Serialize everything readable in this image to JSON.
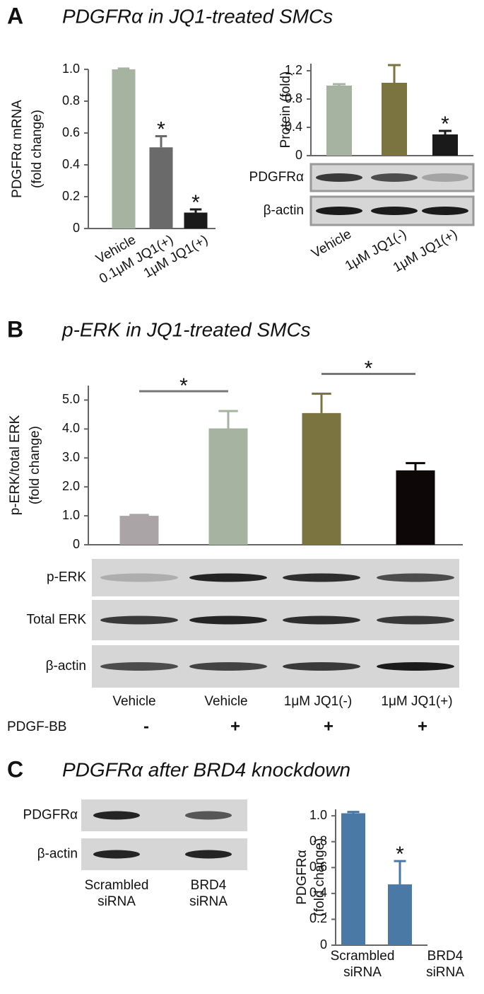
{
  "panels": [
    {
      "letter": "A",
      "title": "PDGFRα in JQ1-treated SMCs"
    },
    {
      "letter": "B",
      "title": "p-ERK in JQ1-treated SMCs"
    },
    {
      "letter": "C",
      "title": "PDGFRα after BRD4 knockdown"
    }
  ],
  "chart_data": [
    {
      "type": "bar",
      "ylabel": [
        "PDGFRα  mRNA",
        "(fold change)"
      ],
      "categories": [
        "Vehicle",
        "0.1μM JQ1(+)",
        "1μM JQ1(+)"
      ],
      "values": [
        1.0,
        0.51,
        0.1
      ],
      "errors": [
        0.005,
        0.07,
        0.02
      ],
      "colors": [
        "#a5b3a0",
        "#6a6a6a",
        "#1a1a1a"
      ],
      "significance": [
        null,
        "*",
        "*"
      ],
      "ylim": [
        0,
        1
      ],
      "yticks": [
        0,
        0.2,
        0.4,
        0.6,
        0.8,
        {
          "value": 1,
          "label": "1.0"
        }
      ]
    },
    {
      "type": "bar",
      "ylabel": [
        "Protein (fold)"
      ],
      "categories": [
        "Vehicle",
        "1μM JQ1(-)",
        "1μM JQ1(+)"
      ],
      "values": [
        0.99,
        1.03,
        0.3
      ],
      "errors": [
        0.02,
        0.25,
        0.05
      ],
      "colors": [
        "#a5b3a0",
        "#7b7340",
        "#1a1a1a"
      ],
      "significance": [
        null,
        null,
        "*"
      ],
      "ylim": [
        0,
        1.3
      ],
      "yticks": [
        0,
        0.4,
        0.8,
        1.2
      ]
    },
    {
      "type": "bar",
      "ylabel": [
        "p-ERK/total ERK",
        "(fold change)"
      ],
      "categories": [
        "Vehicle",
        "Vehicle",
        "1μM JQ1(-)",
        "1μM JQ1(+)"
      ],
      "values": [
        1.0,
        4.02,
        4.55,
        2.57
      ],
      "errors": [
        0.03,
        0.6,
        0.67,
        0.25
      ],
      "colors": [
        "#aaa4a6",
        "#a5b3a0",
        "#7b7340",
        "#0d0708"
      ],
      "significance": [
        null,
        "*",
        null,
        "*"
      ],
      "annotation_style": "bracket",
      "ylim": [
        0,
        5.5
      ],
      "yticks": [
        0,
        {
          "value": 1,
          "label": "1.0"
        },
        {
          "value": 2,
          "label": "2.0"
        },
        {
          "value": 3,
          "label": "3.0"
        },
        {
          "value": 4,
          "label": "4.0"
        },
        {
          "value": 5,
          "label": "5.0"
        }
      ]
    },
    {
      "type": "bar",
      "ylabel": [
        "PDGFRα",
        "(fold change)"
      ],
      "categories": [
        "Scrambled siRNA",
        "BRD4 siRNA"
      ],
      "values": [
        1.02,
        0.47
      ],
      "errors": [
        0.01,
        0.18
      ],
      "color": "#4a79a6",
      "significance": [
        null,
        "*"
      ],
      "ylim": [
        0,
        1.05
      ],
      "yticks": [
        0,
        0.2,
        0.4,
        0.6,
        0.8,
        {
          "value": 1,
          "label": "1.0"
        }
      ]
    }
  ],
  "blots": [
    {
      "rows": [
        "PDGFRα",
        "β-actin"
      ]
    },
    {
      "rows": [
        "p-ERK",
        "Total ERK",
        "β-actin"
      ],
      "treatment_label": "PDGF-BB",
      "treatment": [
        "-",
        "+",
        "+",
        "+"
      ]
    },
    {
      "rows": [
        "PDGFRα",
        "β-actin"
      ]
    }
  ]
}
